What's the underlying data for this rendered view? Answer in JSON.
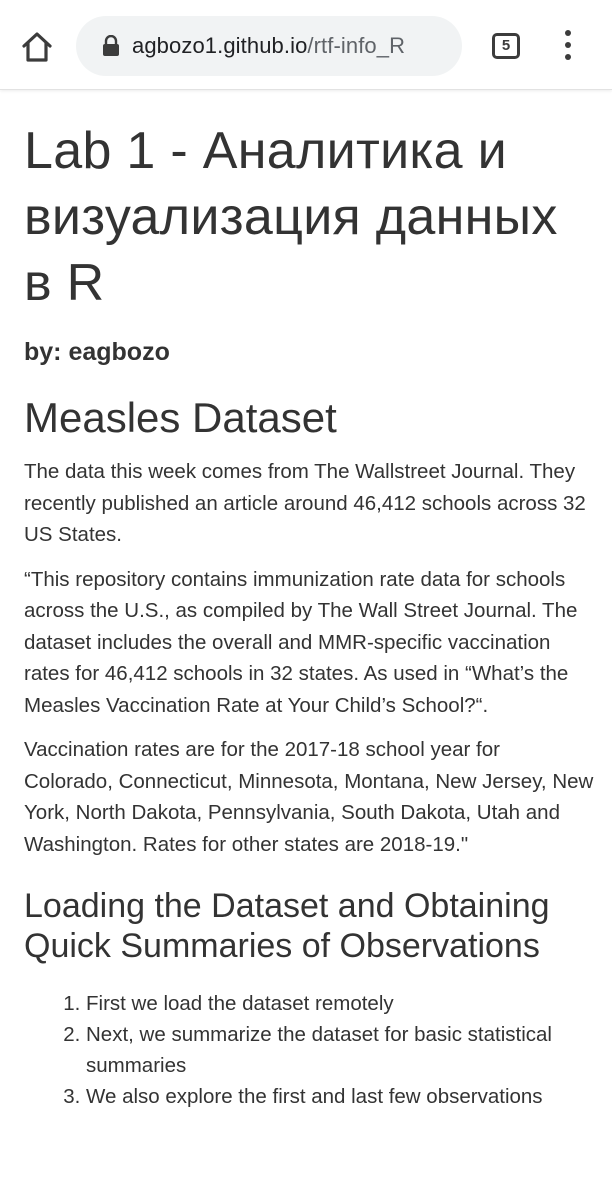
{
  "browser": {
    "url_host": "agbozo1.github.io",
    "url_path": "/rtf-info_R",
    "tab_count": "5",
    "icons": [
      "home-icon",
      "lock-icon",
      "tabs-icon",
      "more-vert-icon"
    ]
  },
  "page": {
    "title": "Lab 1 - Аналитика и визуализация данных в R",
    "author": "by: eagbozo",
    "section_title": "Measles Dataset",
    "paragraphs": [
      "The data this week comes from The Wallstreet Journal. They recently published an article around 46,412 schools across 32 US States.",
      "“This repository contains immunization rate data for schools across the U.S., as compiled by The Wall Street Journal. The dataset includes the overall and MMR-specific vaccination rates for 46,412 schools in 32 states. As used in “What’s the Measles Vaccination Rate at Your Child’s School?“.",
      "Vaccination rates are for the 2017-18 school year for Colorado, Connecticut, Minnesota, Montana, New Jersey, New York, North Dakota, Pennsylvania, South Dakota, Utah and Washington. Rates for other states are 2018-19.\""
    ],
    "subsection_title": "Loading the Dataset and Obtaining Quick Summaries of Observations",
    "steps": [
      "First we load the dataset remotely",
      "Next, we summarize the dataset for basic statistical summaries",
      "We also explore the first and last few observations"
    ]
  },
  "colors": {
    "text": "#333333",
    "chrome_bg": "#ffffff",
    "urlbar_bg": "#f1f3f4",
    "icon": "#3c3c3c"
  }
}
